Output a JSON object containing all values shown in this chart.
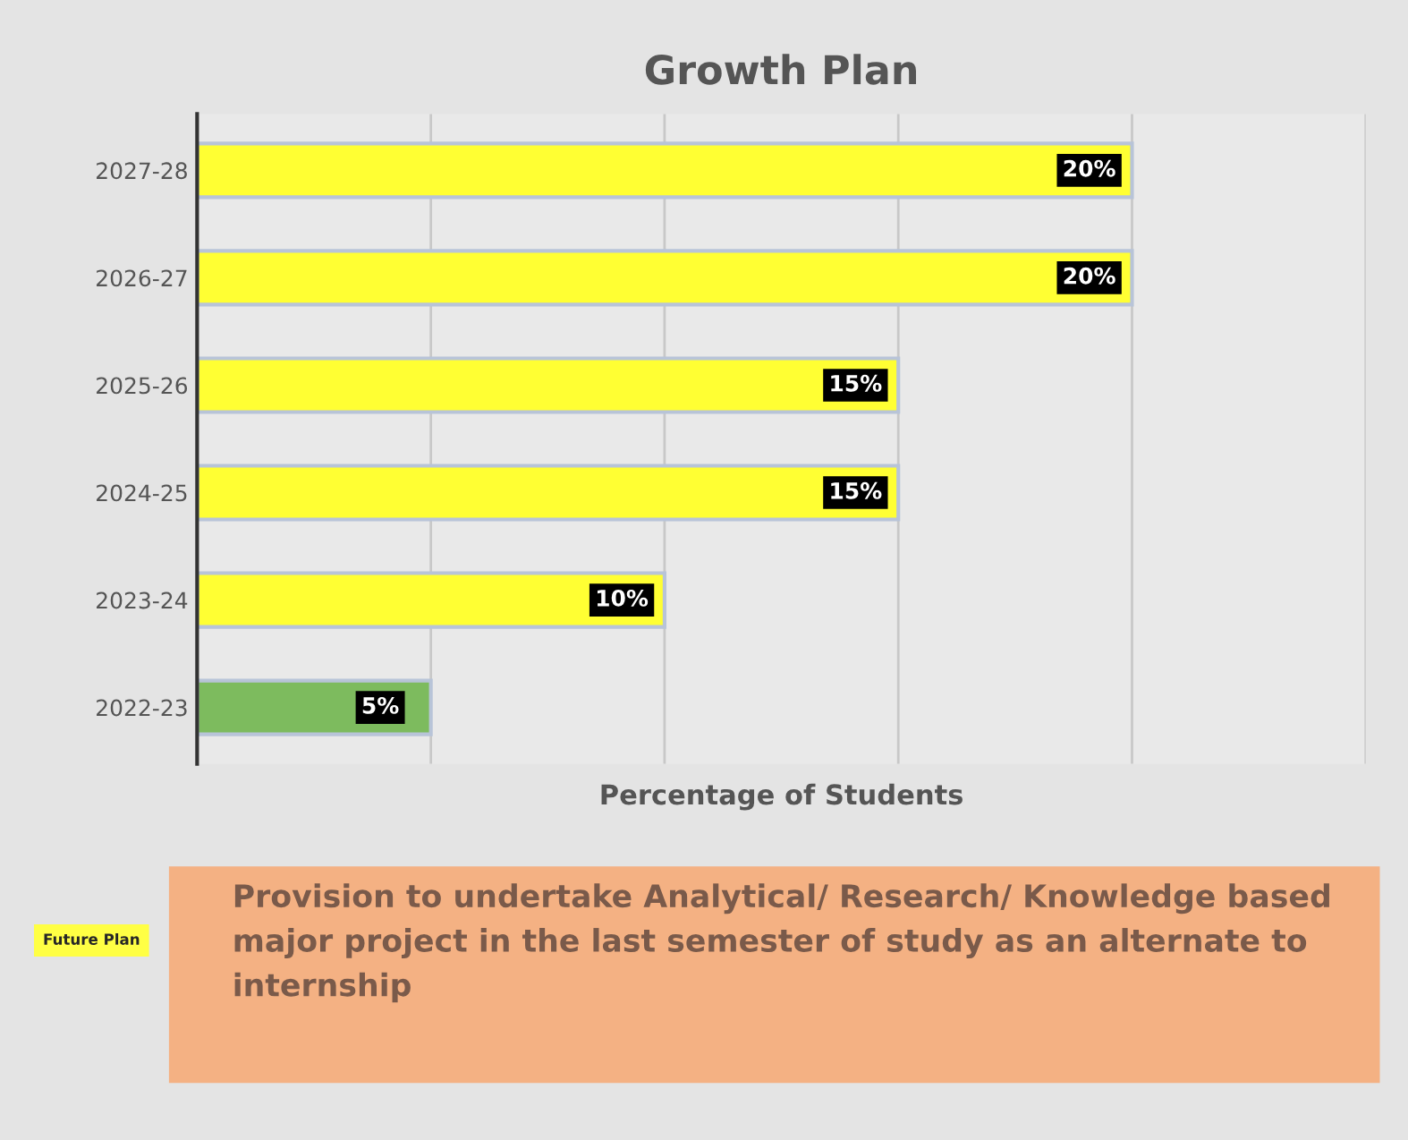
{
  "chart_data": {
    "type": "bar",
    "orientation": "horizontal",
    "title": "Growth Plan",
    "xlabel": "Percentage of Students",
    "categories": [
      "2027-28",
      "2026-27",
      "2025-26",
      "2024-25",
      "2023-24",
      "2022-23"
    ],
    "values": [
      20,
      20,
      15,
      15,
      10,
      5
    ],
    "colors": [
      "#ffff33",
      "#ffff33",
      "#ffff33",
      "#ffff33",
      "#ffff33",
      "#7dbb5e"
    ],
    "value_labels": [
      "20%",
      "20%",
      "15%",
      "15%",
      "10%",
      "5%"
    ],
    "xlim": [
      0,
      25
    ],
    "xticks": [
      0,
      5,
      10,
      15,
      20,
      25
    ],
    "tick_labels": "y",
    "grid": "x",
    "legend": false,
    "annotations": [
      "Future Plan",
      "Provision to undertake Analytical/ Research/ Knowledge based major project in the last semester of study as an alternate to internship"
    ]
  }
}
